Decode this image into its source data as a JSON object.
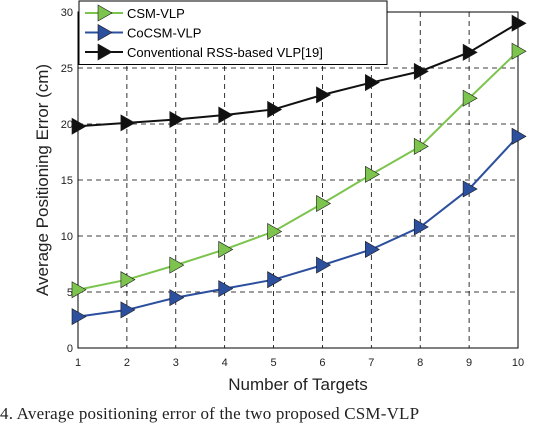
{
  "chart_data": {
    "type": "line",
    "title": "",
    "xlabel": "Number of Targets",
    "ylabel": "Average Positioning Error (cm)",
    "x": [
      1,
      2,
      3,
      4,
      5,
      6,
      7,
      8,
      9,
      10
    ],
    "xticks": [
      "1",
      "2",
      "3",
      "4",
      "5",
      "6",
      "7",
      "8",
      "9",
      "10"
    ],
    "yticks": [
      "0",
      "5",
      "10",
      "15",
      "20",
      "25",
      "30"
    ],
    "xlim": [
      1,
      10
    ],
    "ylim": [
      0,
      30
    ],
    "grid": true,
    "legend_position": "top-left",
    "series": [
      {
        "name": "CSM-VLP",
        "color": "#7cc44e",
        "marker": "triangle-right",
        "values": [
          5.2,
          6.1,
          7.4,
          8.8,
          10.4,
          12.9,
          15.5,
          18.0,
          22.3,
          26.5
        ]
      },
      {
        "name": "CoCSM-VLP",
        "color": "#2c4f9e",
        "marker": "triangle-right",
        "values": [
          2.8,
          3.4,
          4.5,
          5.3,
          6.1,
          7.4,
          8.8,
          10.8,
          14.2,
          18.9
        ]
      },
      {
        "name": "Conventional RSS-based VLP[19]",
        "color": "#111111",
        "marker": "triangle-right",
        "values": [
          19.8,
          20.1,
          20.4,
          20.8,
          21.3,
          22.6,
          23.7,
          24.7,
          26.4,
          29.0
        ]
      }
    ]
  },
  "caption": "4.   Average positioning error of the two proposed CSM-VLP"
}
